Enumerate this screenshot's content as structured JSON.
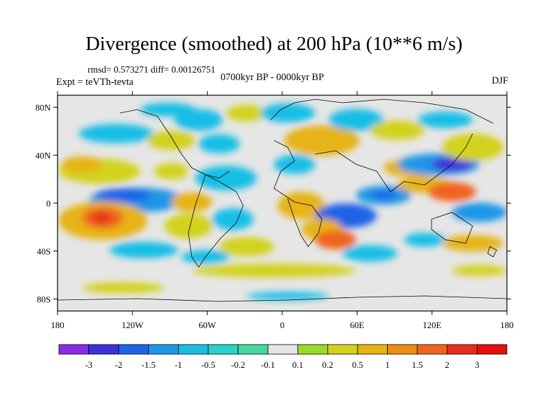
{
  "title": "Divergence (smoothed) at 200 hPa (10**6 m/s)",
  "stats": "rmsd= 0.573271 diff= 0.00126751",
  "experiment": "Expt = teVTh-tevta",
  "period": "0700kyr BP - 0000kyr BP",
  "season": "DJF",
  "axes": {
    "lon_ticks": [
      {
        "value": -180,
        "label": "180"
      },
      {
        "value": -120,
        "label": "120W"
      },
      {
        "value": -60,
        "label": "60W"
      },
      {
        "value": 0,
        "label": "0"
      },
      {
        "value": 60,
        "label": "60E"
      },
      {
        "value": 120,
        "label": "120E"
      },
      {
        "value": 180,
        "label": "180"
      }
    ],
    "lat_ticks": [
      {
        "value": 80,
        "label": "80N"
      },
      {
        "value": 40,
        "label": "40N"
      },
      {
        "value": 0,
        "label": "0"
      },
      {
        "value": -40,
        "label": "40S"
      },
      {
        "value": -80,
        "label": "80S"
      }
    ],
    "lon_range": [
      -180,
      180
    ],
    "lat_range": [
      -90,
      90
    ]
  },
  "colorbar": {
    "labels": [
      "-3",
      "-2",
      "-1.5",
      "-1",
      "-0.5",
      "-0.2",
      "-0.1",
      "0.1",
      "0.2",
      "0.5",
      "1",
      "1.5",
      "2",
      "3"
    ],
    "colors": [
      "#8a2be2",
      "#3c32dc",
      "#1e64e6",
      "#1e96e6",
      "#19bee6",
      "#28d2c8",
      "#46d7a0",
      "#e6e6e6",
      "#96dc28",
      "#d2d21e",
      "#e6b414",
      "#f08c14",
      "#f0641e",
      "#e62d1e",
      "#e60f0f"
    ]
  },
  "colors": {
    "background": "#e6e6e6",
    "coast": "#000000"
  }
}
